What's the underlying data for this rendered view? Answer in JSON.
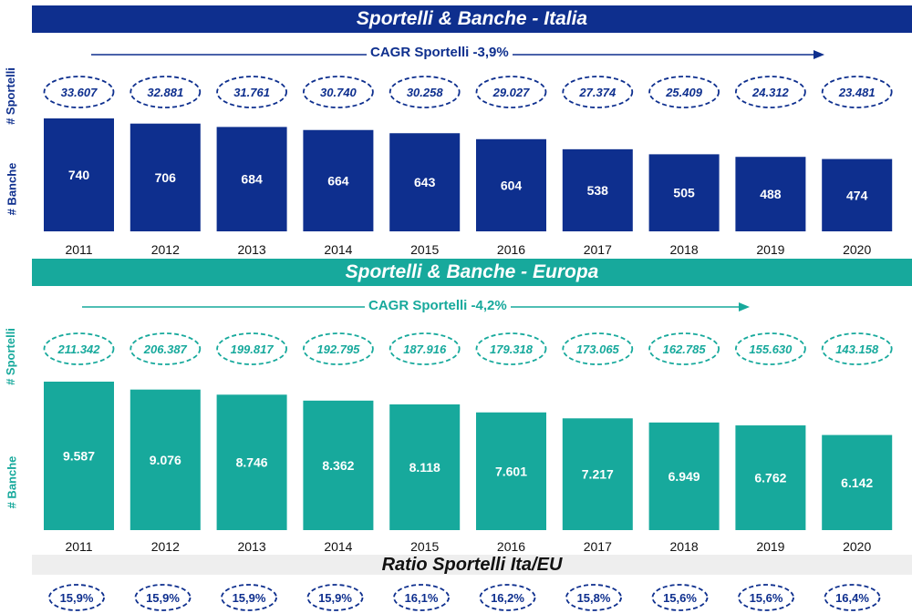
{
  "colors": {
    "italia": "#0e2f8e",
    "europa": "#17a99c",
    "ratio_band": "#eeeeee"
  },
  "panels": {
    "italia": {
      "title": "Sportelli & Banche - Italia",
      "cagr": "CAGR Sportelli -3,9%",
      "y_label_sportelli": "# Sportelli",
      "y_label_banche": "# Banche"
    },
    "europa": {
      "title": "Sportelli & Banche - Europa",
      "cagr": "CAGR Sportelli -4,2%",
      "y_label_sportelli": "# Sportelli",
      "y_label_banche": "# Banche"
    },
    "ratio": {
      "title": "Ratio Sportelli Ita/EU"
    }
  },
  "chart_data": [
    {
      "type": "bar",
      "title": "Sportelli & Banche - Italia",
      "categories": [
        "2011",
        "2012",
        "2013",
        "2014",
        "2015",
        "2016",
        "2017",
        "2018",
        "2019",
        "2020"
      ],
      "series": [
        {
          "name": "# Banche",
          "values": [
            740,
            706,
            684,
            664,
            643,
            604,
            538,
            505,
            488,
            474
          ],
          "labels": [
            "740",
            "706",
            "684",
            "664",
            "643",
            "604",
            "538",
            "505",
            "488",
            "474"
          ]
        },
        {
          "name": "# Sportelli",
          "values": [
            33607,
            32881,
            31761,
            30740,
            30258,
            29027,
            27374,
            25409,
            24312,
            23481
          ],
          "labels": [
            "33.607",
            "32.881",
            "31.761",
            "30.740",
            "30.258",
            "29.027",
            "27.374",
            "25.409",
            "24.312",
            "23.481"
          ]
        }
      ],
      "annotations": [
        "CAGR Sportelli -3,9%"
      ]
    },
    {
      "type": "bar",
      "title": "Sportelli & Banche - Europa",
      "categories": [
        "2011",
        "2012",
        "2013",
        "2014",
        "2015",
        "2016",
        "2017",
        "2018",
        "2019",
        "2020"
      ],
      "series": [
        {
          "name": "# Banche",
          "values": [
            9587,
            9076,
            8746,
            8362,
            8118,
            7601,
            7217,
            6949,
            6762,
            6142
          ],
          "labels": [
            "9.587",
            "9.076",
            "8.746",
            "8.362",
            "8.118",
            "7.601",
            "7.217",
            "6.949",
            "6.762",
            "6.142"
          ]
        },
        {
          "name": "# Sportelli",
          "values": [
            211342,
            206387,
            199817,
            192795,
            187916,
            179318,
            173065,
            162785,
            155630,
            143158
          ],
          "labels": [
            "211.342",
            "206.387",
            "199.817",
            "192.795",
            "187.916",
            "179.318",
            "173.065",
            "162.785",
            "155.630",
            "143.158"
          ]
        }
      ],
      "annotations": [
        "CAGR Sportelli -4,2%"
      ]
    },
    {
      "type": "table",
      "title": "Ratio Sportelli Ita/EU",
      "categories": [
        "2011",
        "2012",
        "2013",
        "2014",
        "2015",
        "2016",
        "2017",
        "2018",
        "2019",
        "2020"
      ],
      "values": [
        15.9,
        15.9,
        15.9,
        15.9,
        16.1,
        16.2,
        15.8,
        15.6,
        15.6,
        16.4
      ],
      "labels": [
        "15,9%",
        "15,9%",
        "15,9%",
        "15,9%",
        "16,1%",
        "16,2%",
        "15,8%",
        "15,6%",
        "15,6%",
        "16,4%"
      ]
    }
  ]
}
